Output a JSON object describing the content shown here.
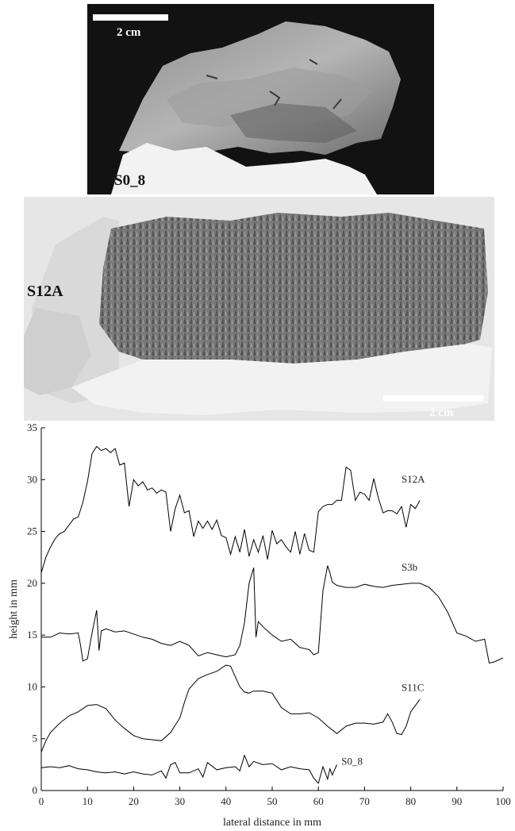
{
  "photos": [
    {
      "sample_label": "S0_8",
      "scale_label": "2 cm"
    },
    {
      "sample_label": "S12A",
      "scale_label": "2 cm"
    }
  ],
  "chart_data": {
    "type": "line",
    "xlabel": "lateral distance in mm",
    "ylabel": "height in mm",
    "xlim": [
      0,
      100
    ],
    "ylim": [
      0,
      35
    ],
    "xticks": [
      0,
      10,
      20,
      30,
      40,
      50,
      60,
      70,
      80,
      90,
      100
    ],
    "yticks": [
      0,
      5,
      10,
      15,
      20,
      25,
      30,
      35
    ],
    "grid": false,
    "series": [
      {
        "name": "S12A",
        "x": [
          0,
          1,
          2,
          3,
          4,
          5,
          6,
          7,
          8,
          9,
          10,
          11,
          12,
          13,
          14,
          15,
          16,
          17,
          18,
          19,
          20,
          21,
          22,
          23,
          24,
          25,
          26,
          27,
          28,
          29,
          30,
          31,
          32,
          33,
          34,
          35,
          36,
          37,
          38,
          39,
          40,
          41,
          42,
          43,
          44,
          45,
          46,
          47,
          48,
          49,
          50,
          51,
          52,
          53,
          54,
          55,
          56,
          57,
          58,
          59,
          60,
          61,
          62,
          63,
          64,
          65,
          66,
          67,
          68,
          69,
          70,
          71,
          72,
          73,
          74,
          75,
          76,
          77,
          78,
          79,
          80,
          81,
          82
        ],
        "y": [
          21.0,
          22.5,
          23.5,
          24.3,
          24.8,
          25.0,
          25.6,
          26.2,
          26.4,
          27.8,
          29.8,
          32.5,
          33.2,
          32.8,
          33.0,
          32.6,
          33.0,
          31.4,
          31.6,
          27.4,
          30.0,
          29.4,
          29.8,
          29.0,
          29.2,
          28.7,
          29.0,
          28.8,
          25.0,
          27.2,
          28.5,
          26.8,
          27.0,
          24.5,
          26.0,
          25.3,
          26.0,
          25.2,
          26.1,
          24.6,
          24.4,
          22.8,
          24.5,
          23.0,
          25.2,
          22.6,
          24.2,
          23.0,
          24.6,
          22.3,
          25.1,
          23.8,
          24.2,
          23.5,
          23.0,
          25.0,
          22.8,
          24.8,
          23.2,
          23.0,
          26.9,
          27.4,
          27.6,
          27.6,
          28.0,
          28.0,
          31.2,
          30.9,
          28.0,
          28.8,
          28.6,
          28.0,
          30.1,
          28.2,
          26.8,
          27.0,
          27.0,
          26.7,
          27.4,
          25.4,
          27.6,
          27.2,
          28.0
        ]
      },
      {
        "name": "S3b",
        "x": [
          0,
          2,
          4,
          6,
          8,
          8.5,
          9,
          10,
          11,
          12,
          12.5,
          13,
          14,
          16,
          18,
          20,
          22,
          24,
          26,
          28,
          30,
          32,
          34,
          36,
          38,
          40,
          42,
          43,
          44,
          45,
          46,
          46.5,
          47,
          48,
          50,
          52,
          54,
          56,
          58,
          59,
          60,
          61,
          62,
          62.5,
          63,
          64,
          66,
          68,
          70,
          72,
          74,
          76,
          78,
          80,
          82,
          84,
          86,
          88,
          90,
          92,
          94,
          96,
          97,
          98,
          99,
          100
        ],
        "y": [
          14.8,
          14.8,
          15.2,
          15.1,
          15.2,
          14.0,
          12.5,
          12.7,
          15.2,
          17.4,
          13.5,
          15.4,
          15.6,
          15.3,
          15.4,
          15.1,
          14.8,
          14.6,
          14.2,
          14.0,
          14.4,
          14.0,
          13.0,
          13.3,
          13.1,
          12.9,
          13.1,
          14.0,
          16.2,
          20.0,
          21.5,
          14.8,
          16.3,
          15.8,
          15.0,
          14.4,
          14.6,
          13.8,
          13.6,
          13.1,
          13.3,
          19.3,
          21.7,
          21.0,
          20.1,
          19.8,
          19.6,
          19.6,
          19.9,
          19.7,
          19.6,
          19.8,
          19.9,
          20.0,
          20.0,
          19.6,
          18.7,
          17.2,
          15.2,
          14.9,
          14.4,
          14.6,
          12.3,
          12.4,
          12.6,
          12.8
        ]
      },
      {
        "name": "S11C",
        "x": [
          0,
          1,
          2,
          4,
          6,
          8,
          10,
          12,
          14,
          16,
          18,
          20,
          22,
          24,
          26,
          28,
          30,
          31,
          32,
          34,
          36,
          38,
          40,
          41,
          42,
          43,
          44,
          45,
          46,
          48,
          50,
          52,
          54,
          56,
          58,
          60,
          62,
          64,
          66,
          68,
          70,
          72,
          74,
          75,
          76,
          77,
          78,
          79,
          80,
          81,
          82
        ],
        "y": [
          3.7,
          4.8,
          5.6,
          6.5,
          7.2,
          7.6,
          8.2,
          8.3,
          7.9,
          6.8,
          6.0,
          5.3,
          5.0,
          4.9,
          4.8,
          5.6,
          7.0,
          8.5,
          9.8,
          10.8,
          11.2,
          11.5,
          12.1,
          12.0,
          11.0,
          10.0,
          9.5,
          9.4,
          9.6,
          9.6,
          9.4,
          8.0,
          7.4,
          7.4,
          7.5,
          7.0,
          6.2,
          5.5,
          6.2,
          6.5,
          6.5,
          6.4,
          6.6,
          7.4,
          6.6,
          5.5,
          5.4,
          6.2,
          7.6,
          8.2,
          8.8
        ]
      },
      {
        "name": "S0_8",
        "x": [
          0,
          2,
          4,
          6,
          8,
          10,
          12,
          14,
          16,
          18,
          20,
          22,
          24,
          26,
          27,
          28,
          29,
          30,
          32,
          34,
          35,
          36,
          38,
          40,
          42,
          43,
          44,
          45,
          46,
          48,
          50,
          52,
          54,
          56,
          58,
          59,
          60,
          61,
          62,
          62.5,
          63,
          64
        ],
        "y": [
          2.2,
          2.3,
          2.2,
          2.4,
          2.1,
          2.0,
          1.8,
          1.7,
          1.8,
          1.6,
          1.8,
          1.6,
          1.5,
          1.9,
          1.2,
          2.5,
          2.7,
          1.7,
          1.7,
          2.1,
          1.3,
          2.7,
          2.0,
          2.2,
          2.3,
          1.9,
          3.4,
          2.3,
          2.8,
          2.5,
          2.6,
          2.0,
          2.3,
          2.1,
          2.0,
          1.2,
          0.7,
          2.3,
          1.1,
          2.1,
          1.5,
          2.5
        ]
      }
    ]
  }
}
